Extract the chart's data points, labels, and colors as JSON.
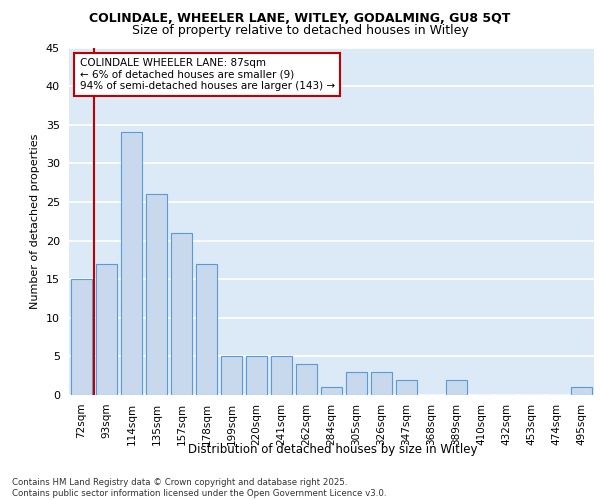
{
  "title_line1": "COLINDALE, WHEELER LANE, WITLEY, GODALMING, GU8 5QT",
  "title_line2": "Size of property relative to detached houses in Witley",
  "xlabel": "Distribution of detached houses by size in Witley",
  "ylabel": "Number of detached properties",
  "categories": [
    "72sqm",
    "93sqm",
    "114sqm",
    "135sqm",
    "157sqm",
    "178sqm",
    "199sqm",
    "220sqm",
    "241sqm",
    "262sqm",
    "284sqm",
    "305sqm",
    "326sqm",
    "347sqm",
    "368sqm",
    "389sqm",
    "410sqm",
    "432sqm",
    "453sqm",
    "474sqm",
    "495sqm"
  ],
  "values": [
    15,
    17,
    34,
    26,
    21,
    17,
    5,
    5,
    5,
    4,
    1,
    3,
    3,
    2,
    0,
    2,
    0,
    0,
    0,
    0,
    1
  ],
  "bar_color": "#c9d9ed",
  "bar_edge_color": "#5b9bd5",
  "background_color": "#dce9f7",
  "grid_color": "#ffffff",
  "annotation_box_color": "#c00000",
  "annotation_text": "COLINDALE WHEELER LANE: 87sqm\n← 6% of detached houses are smaller (9)\n94% of semi-detached houses are larger (143) →",
  "ylim": [
    0,
    45
  ],
  "yticks": [
    0,
    5,
    10,
    15,
    20,
    25,
    30,
    35,
    40,
    45
  ],
  "footnote": "Contains HM Land Registry data © Crown copyright and database right 2025.\nContains public sector information licensed under the Open Government Licence v3.0.",
  "bar_width": 0.85
}
